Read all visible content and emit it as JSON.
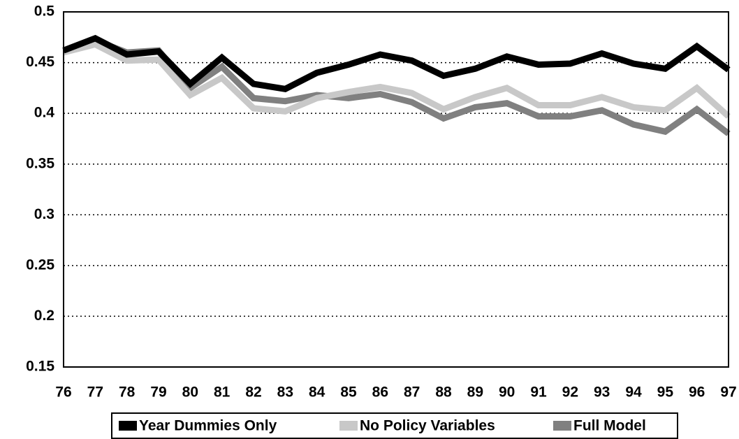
{
  "chart_data": {
    "type": "line",
    "categories": [
      "76",
      "77",
      "78",
      "79",
      "80",
      "81",
      "82",
      "83",
      "84",
      "85",
      "86",
      "87",
      "88",
      "89",
      "90",
      "91",
      "92",
      "93",
      "94",
      "95",
      "96",
      "97"
    ],
    "series": [
      {
        "name": "Year Dummies Only",
        "color": "#000000",
        "values": [
          0.462,
          0.474,
          0.458,
          0.461,
          0.429,
          0.455,
          0.429,
          0.424,
          0.44,
          0.448,
          0.458,
          0.452,
          0.437,
          0.444,
          0.456,
          0.448,
          0.449,
          0.459,
          0.449,
          0.444,
          0.466,
          0.443
        ]
      },
      {
        "name": "No Policy Variables",
        "color": "#c8c8c8",
        "values": [
          0.46,
          0.468,
          0.452,
          0.453,
          0.418,
          0.435,
          0.405,
          0.402,
          0.415,
          0.421,
          0.426,
          0.42,
          0.404,
          0.416,
          0.425,
          0.408,
          0.408,
          0.416,
          0.406,
          0.403,
          0.425,
          0.397
        ]
      },
      {
        "name": "Full Model",
        "color": "#808080",
        "values": [
          0.461,
          0.472,
          0.46,
          0.462,
          0.425,
          0.446,
          0.415,
          0.412,
          0.418,
          0.415,
          0.419,
          0.411,
          0.395,
          0.406,
          0.41,
          0.397,
          0.397,
          0.403,
          0.389,
          0.382,
          0.404,
          0.38
        ]
      }
    ],
    "ylim": [
      0.15,
      0.5
    ],
    "yticks": [
      0.15,
      0.2,
      0.25,
      0.3,
      0.35,
      0.4,
      0.45,
      0.5
    ],
    "grid": true
  }
}
